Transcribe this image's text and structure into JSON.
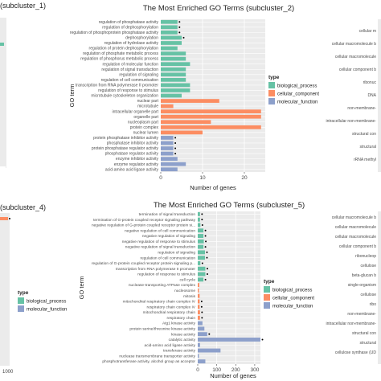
{
  "colors": {
    "biological_process": "#66c2a5",
    "cellular_component": "#fc8d62",
    "molecular_function": "#8da0cb",
    "panel_bg": "#ebebeb",
    "grid": "#ffffff"
  },
  "chart_data": [
    {
      "id": "c1",
      "type": "bar",
      "orientation": "horizontal",
      "title": "(subcluster_1)",
      "xlabel": "",
      "ylabel": "",
      "note": "left edge cropped",
      "legend": {
        "title": "type",
        "position": "right",
        "entries": []
      }
    },
    {
      "id": "c2",
      "type": "bar",
      "orientation": "horizontal",
      "title": "The Most Enriched GO Terms (subcluster_2)",
      "xlabel": "Number of genes",
      "ylabel": "GO term",
      "xlim": [
        0,
        25
      ],
      "xticks": [
        "0",
        "10",
        "20"
      ],
      "xtick_values": [
        0,
        10,
        20
      ],
      "legend": {
        "title": "type",
        "position": "right",
        "entries": [
          {
            "label": "biological_process",
            "key": "biological_process"
          },
          {
            "label": "cellular_component",
            "key": "cellular_component"
          },
          {
            "label": "molecular_function",
            "key": "molecular_function"
          }
        ]
      },
      "categories": [
        "regulation of phosphatase activity",
        "regulation of dephosphorylation",
        "regulation of phosphoprotein phosphatase activity",
        "dephosphorylation",
        "regulation of hydrolase activity",
        "regulation of protein dephosphorylation",
        "regulation of phosphate metabolic process",
        "regulation of phosphorus metabolic process",
        "regulation of molecular function",
        "regulation of signal transduction",
        "regulation of signaling",
        "regulation of cell communication",
        "transcription from RNA polymerase II promoter",
        "regulation of response to stimulus",
        "microtubule cytoskeleton organization",
        "nuclear part",
        "microtubule",
        "intracellular organelle part",
        "organelle part",
        "nucleoplasm part",
        "protein complex",
        "nuclear lumen",
        "protein phosphatase inhibitor activity",
        "phosphatase inhibitor activity",
        "protein phosphatase regulator activity",
        "phosphatase regulator activity",
        "enzyme inhibitor activity",
        "enzyme regulator activity",
        "acid-amino acid ligase activity"
      ],
      "types": [
        "biological_process",
        "biological_process",
        "biological_process",
        "biological_process",
        "biological_process",
        "biological_process",
        "biological_process",
        "biological_process",
        "biological_process",
        "biological_process",
        "biological_process",
        "biological_process",
        "biological_process",
        "biological_process",
        "biological_process",
        "cellular_component",
        "cellular_component",
        "cellular_component",
        "cellular_component",
        "cellular_component",
        "cellular_component",
        "cellular_component",
        "molecular_function",
        "molecular_function",
        "molecular_function",
        "molecular_function",
        "molecular_function",
        "molecular_function",
        "molecular_function"
      ],
      "values": [
        4,
        4,
        4,
        5,
        5,
        4,
        6,
        6,
        7,
        6,
        6,
        6,
        7,
        7,
        5,
        14,
        3,
        24,
        24,
        12,
        24,
        10,
        3,
        3,
        3,
        3,
        4,
        6,
        4
      ],
      "starred": [
        true,
        true,
        true,
        true,
        false,
        false,
        false,
        false,
        false,
        false,
        false,
        false,
        false,
        false,
        false,
        false,
        false,
        false,
        false,
        false,
        false,
        false,
        true,
        true,
        true,
        true,
        false,
        false,
        false
      ]
    },
    {
      "id": "c3",
      "type": "bar",
      "orientation": "horizontal",
      "title": "",
      "xlabel": "",
      "ylabel": "",
      "note": "right edge cropped"
    },
    {
      "id": "c4",
      "type": "bar",
      "orientation": "horizontal",
      "title": "(subcluster_4)",
      "xlabel": "",
      "ylabel": "",
      "xticks": [
        "1000"
      ],
      "legend": {
        "title": "type",
        "position": "right",
        "entries": [
          {
            "label": "biological_process",
            "key": "biological_process"
          },
          {
            "label": "molecular_function",
            "key": "molecular_function"
          }
        ]
      },
      "note": "left edge cropped"
    },
    {
      "id": "c5",
      "type": "bar",
      "orientation": "horizontal",
      "title": "The Most Enriched GO Terms (subcluster_5)",
      "xlabel": "Number of genes",
      "ylabel": "GO term",
      "xlim": [
        0,
        330
      ],
      "xticks": [
        "0",
        "100",
        "200",
        "300"
      ],
      "xtick_values": [
        0,
        100,
        200,
        300
      ],
      "legend": {
        "title": "type",
        "position": "right",
        "entries": [
          {
            "label": "biological_process",
            "key": "biological_process"
          },
          {
            "label": "cellular_component",
            "key": "cellular_component"
          },
          {
            "label": "molecular_function",
            "key": "molecular_function"
          }
        ]
      },
      "categories": [
        "termination of signal transduction",
        "termination of G-protein coupled receptor signaling pathway",
        "negative regulation of G-protein coupled receptor protein si...",
        "negative regulation of cell communication",
        "negative regulation of signaling",
        "negative regulation of response to stimulus",
        "negative regulation of signal transduction",
        "regulation of signaling",
        "regulation of cell communication",
        "regulation of G-protein coupled receptor protein signaling p...",
        "transcription from RNA polymerase II promoter",
        "regulation of response to stimulus",
        "cell cycle",
        "nuclease-transporting ATPase complex",
        "nucleosome",
        "mitosis",
        "mitochondrial respiratory chain complex IV",
        "respiratory chain complex IV",
        "mitochondrial respiratory chain",
        "respiratory chain",
        "Atg1 kinase activity",
        "protein serine/threonine kinase activity",
        "kinase activity",
        "catalytic activity",
        "acid-amino acid ligase activity",
        "transferase activity",
        "nuclease transmembrane transporter activity",
        "phosphotransferase activity, alcohol group as acceptor"
      ],
      "types": [
        "biological_process",
        "biological_process",
        "biological_process",
        "biological_process",
        "biological_process",
        "biological_process",
        "biological_process",
        "biological_process",
        "biological_process",
        "biological_process",
        "biological_process",
        "biological_process",
        "biological_process",
        "cellular_component",
        "cellular_component",
        "cellular_component",
        "cellular_component",
        "cellular_component",
        "cellular_component",
        "cellular_component",
        "molecular_function",
        "molecular_function",
        "molecular_function",
        "molecular_function",
        "molecular_function",
        "molecular_function",
        "molecular_function",
        "molecular_function"
      ],
      "values": [
        12,
        12,
        14,
        30,
        30,
        32,
        30,
        38,
        38,
        14,
        40,
        40,
        30,
        8,
        6,
        10,
        10,
        10,
        12,
        12,
        25,
        35,
        50,
        330,
        12,
        120,
        6,
        40
      ],
      "starred": [
        true,
        true,
        true,
        true,
        true,
        true,
        true,
        true,
        true,
        true,
        true,
        true,
        true,
        false,
        false,
        false,
        true,
        true,
        true,
        true,
        false,
        false,
        true,
        true,
        false,
        false,
        false,
        false
      ]
    },
    {
      "id": "c6",
      "type": "bar",
      "orientation": "horizontal",
      "title": "",
      "xlabel": "",
      "ylabel": "",
      "note": "right edge cropped"
    }
  ],
  "fragments": {
    "c1_title": "(subcluster_1)",
    "c4_title": "(subcluster_4)",
    "c4_tick": "1000",
    "c3_ylabel": "",
    "c6_ylabel": "",
    "c3_terms": [
      "cellular m",
      "cellular macromolecule b",
      "cellular macromolecule",
      "cellular component b",
      "ribonuc",
      "DNA",
      "non-membrane-",
      "intracellular non-membrane-",
      "structural con",
      "structural",
      "rRNA methyl"
    ],
    "c6_terms": [
      "cellular macromolecule b",
      "cellular macromolecule",
      "cellular macromolecule",
      "cellular component b",
      "ribonucleop",
      "cellulose",
      "beta-glucan b",
      "single-organism",
      "cellulose",
      "ribo",
      "non-membrane-",
      "intracellular non-membrane-",
      "structural con",
      "structural",
      "cellulose synthase (UD"
    ]
  }
}
